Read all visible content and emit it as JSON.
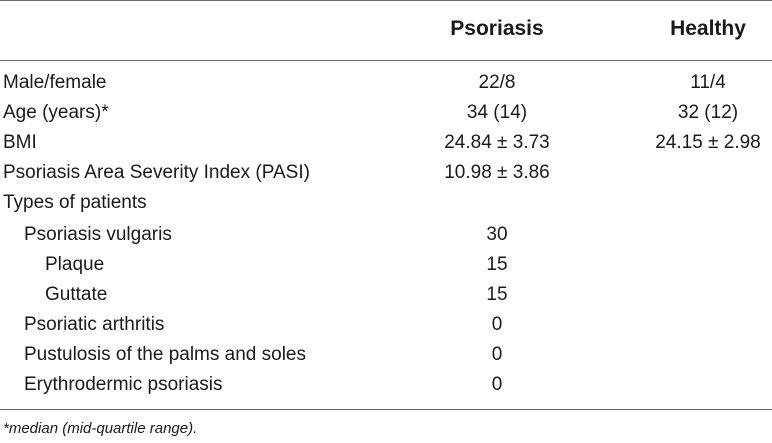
{
  "table": {
    "headers": {
      "psoriasis": "Psoriasis",
      "healthy": "Healthy"
    },
    "rows": [
      {
        "label": "Male/female",
        "psoriasis": "22/8",
        "healthy": "11/4"
      },
      {
        "label": "Age (years)*",
        "psoriasis": "34 (14)",
        "healthy": "32 (12)"
      },
      {
        "label": "BMI",
        "psoriasis": "24.84 ± 3.73",
        "healthy": "24.15 ± 2.98"
      },
      {
        "label": "Psoriasis Area Severity Index (PASI)",
        "psoriasis": "10.98 ± 3.86",
        "healthy": ""
      },
      {
        "label": "Types of patients",
        "psoriasis": "",
        "healthy": ""
      },
      {
        "label": "Psoriasis vulgaris",
        "psoriasis": "30",
        "healthy": ""
      },
      {
        "label": "Plaque",
        "psoriasis": "15",
        "healthy": ""
      },
      {
        "label": "Guttate",
        "psoriasis": "15",
        "healthy": ""
      },
      {
        "label": "Psoriatic arthritis",
        "psoriasis": "0",
        "healthy": ""
      },
      {
        "label": "Pustulosis of the palms and soles",
        "psoriasis": "0",
        "healthy": ""
      },
      {
        "label": "Erythrodermic psoriasis",
        "psoriasis": "0",
        "healthy": ""
      }
    ]
  },
  "footnote": "*median (mid-quartile range)."
}
